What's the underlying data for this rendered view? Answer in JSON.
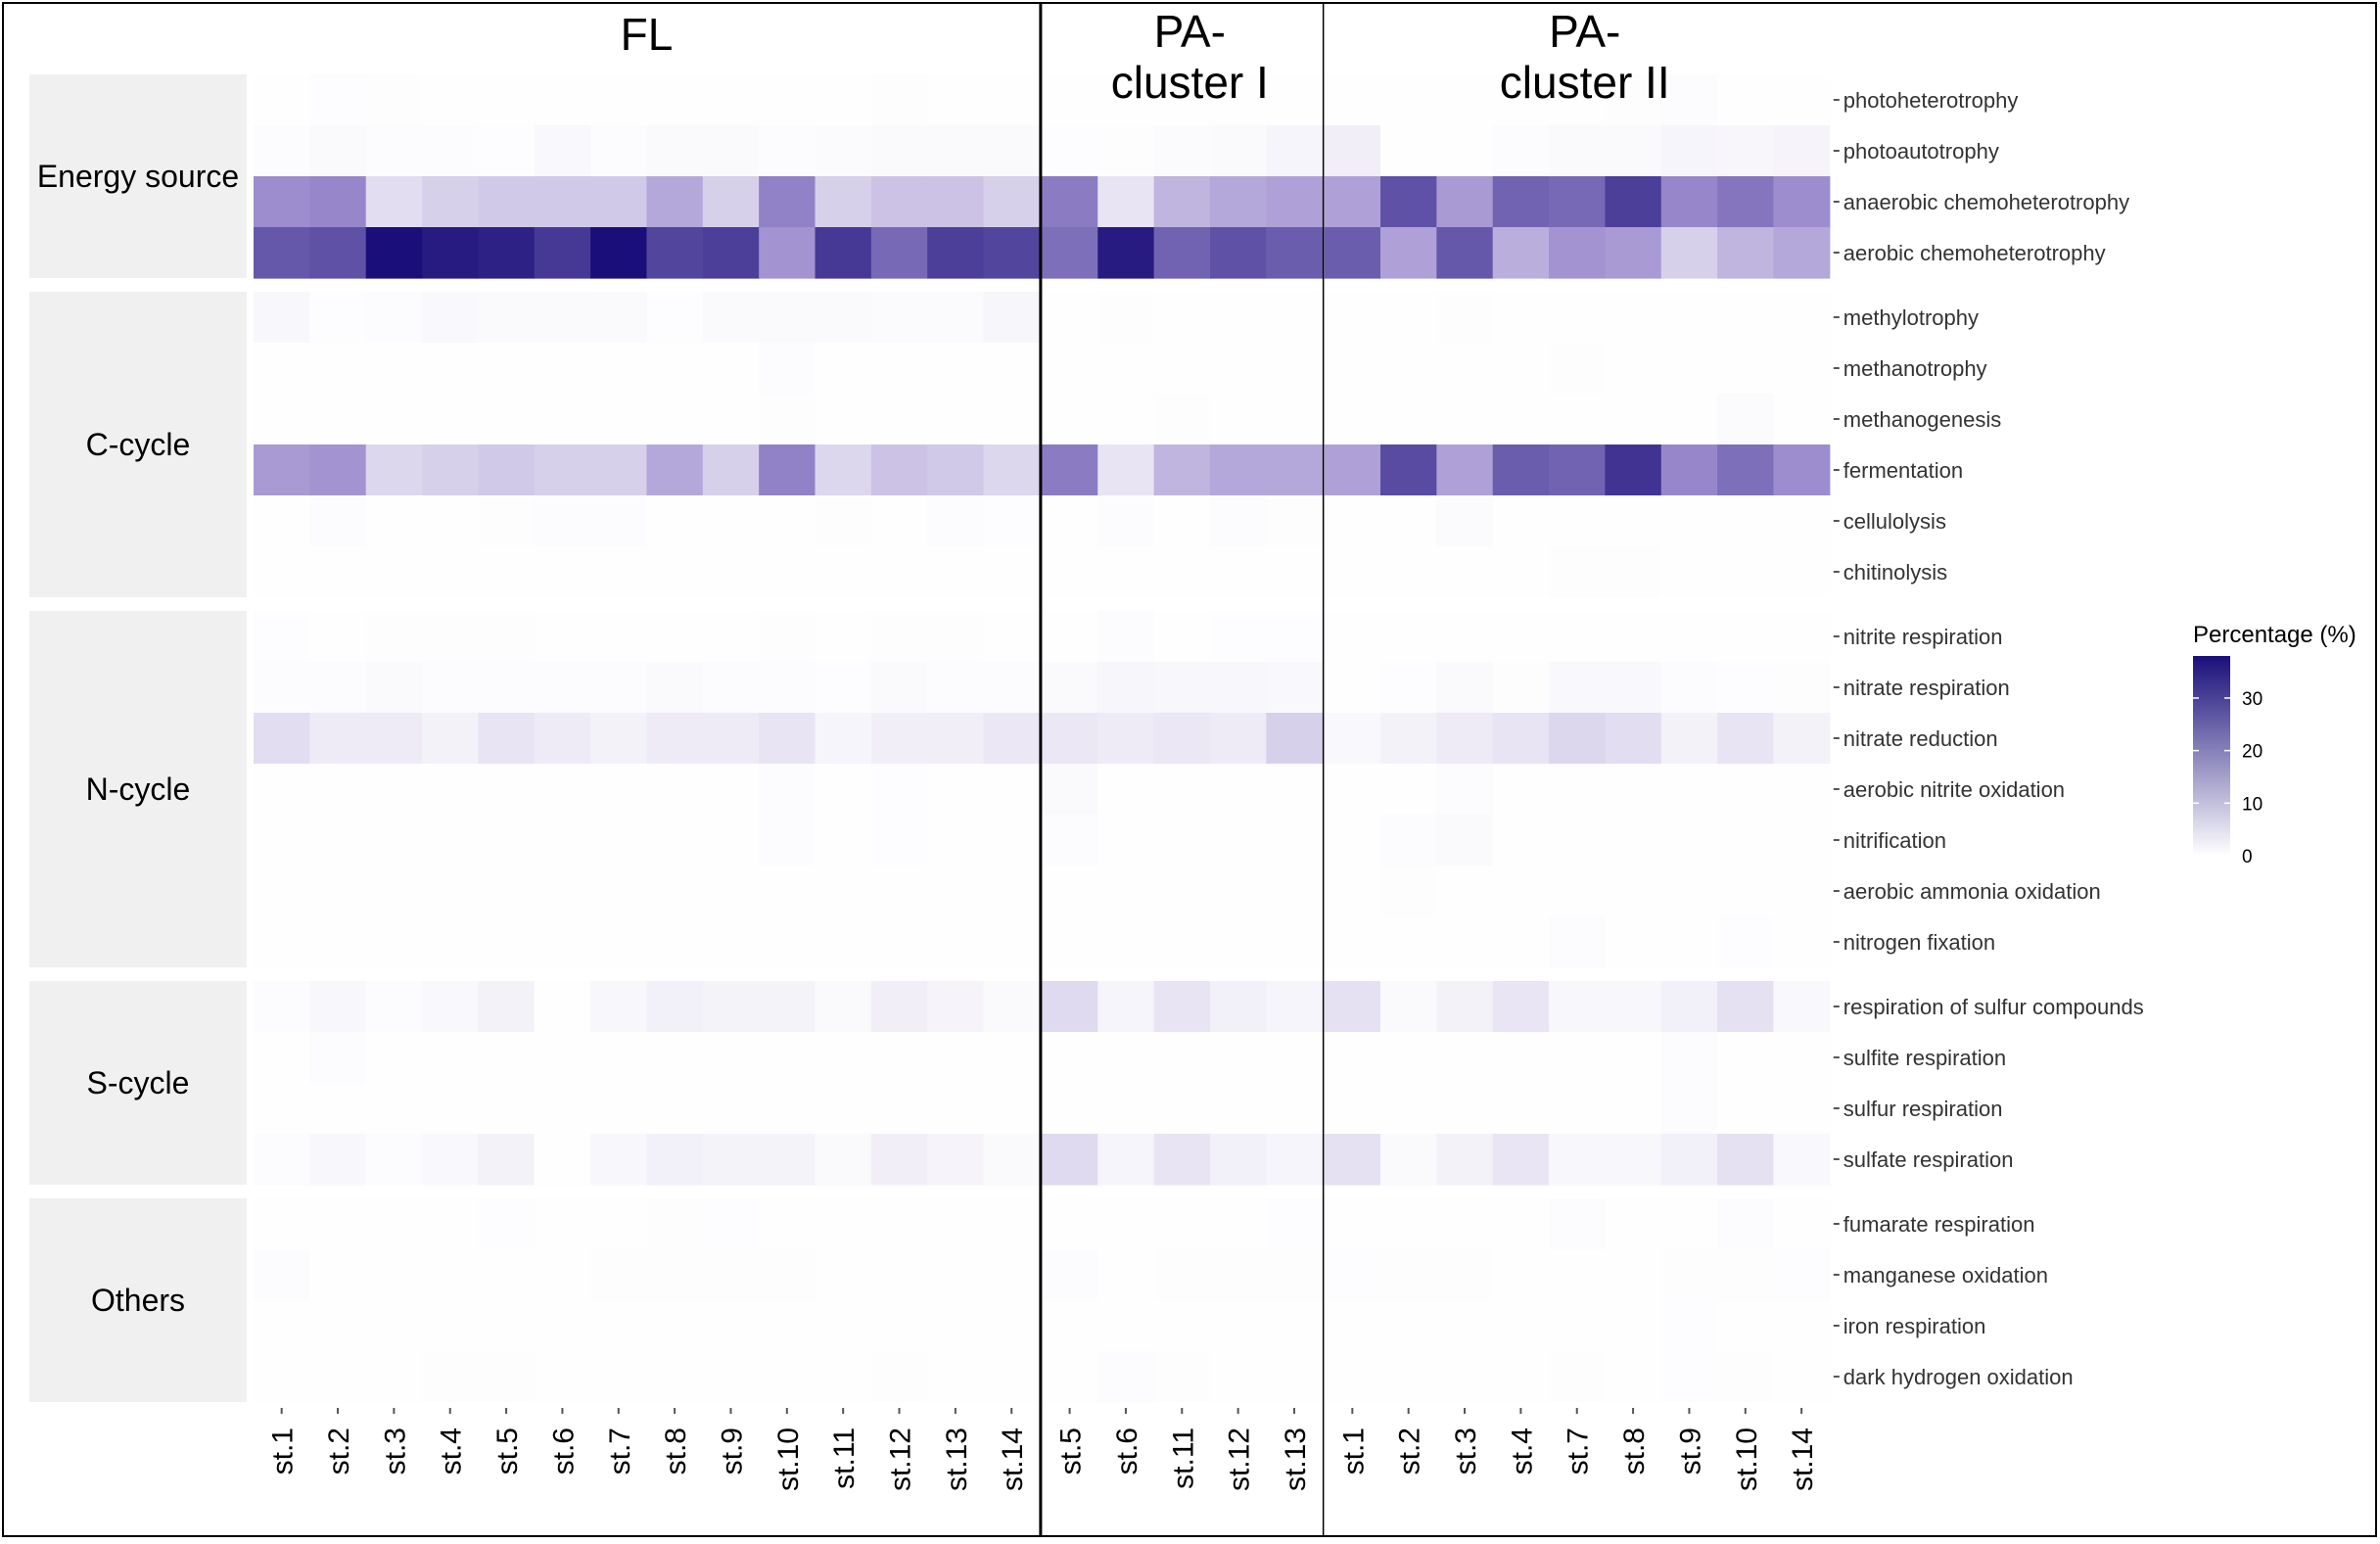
{
  "chart_data": {
    "type": "heatmap",
    "legend": {
      "title": "Percentage (%)",
      "ticks": [
        0,
        10,
        20,
        30
      ],
      "range": [
        0,
        38
      ],
      "color_low": "#ffffff",
      "color_high": "#1a0f7a",
      "placement": "right"
    },
    "sections": [
      {
        "name": "FL",
        "columns": [
          "st.1",
          "st.2",
          "st.3",
          "st.4",
          "st.5",
          "st.6",
          "st.7",
          "st.8",
          "st.9",
          "st.10",
          "st.11",
          "st.12",
          "st.13",
          "st.14"
        ]
      },
      {
        "name": "PA-\ncluster I",
        "columns": [
          "st.5",
          "st.6",
          "st.11",
          "st.12",
          "st.13"
        ]
      },
      {
        "name": "PA-\ncluster II",
        "columns": [
          "st.1",
          "st.2",
          "st.3",
          "st.4",
          "st.7",
          "st.8",
          "st.9",
          "st.10",
          "st.14"
        ]
      }
    ],
    "groups": [
      {
        "name": "Energy source",
        "rows": [
          "photoheterotrophy",
          "photoautotrophy",
          "anaerobic chemoheterotrophy",
          "aerobic chemoheterotrophy"
        ]
      },
      {
        "name": "C-cycle",
        "rows": [
          "methylotrophy",
          "methanotrophy",
          "methanogenesis",
          "fermentation",
          "cellulolysis",
          "chitinolysis"
        ]
      },
      {
        "name": "N-cycle",
        "rows": [
          "nitrite respiration",
          "nitrate respiration",
          "nitrate reduction",
          "aerobic nitrite oxidation",
          "nitrification",
          "aerobic ammonia oxidation",
          "nitrogen fixation"
        ]
      },
      {
        "name": "S-cycle",
        "rows": [
          "respiration of sulfur compounds",
          "sulfite respiration",
          "sulfur respiration",
          "sulfate respiration"
        ]
      },
      {
        "name": "Others",
        "rows": [
          "fumarate respiration",
          "manganese oxidation",
          "iron respiration",
          "dark hydrogen oxidation"
        ]
      }
    ],
    "values": [
      [
        [
          0.1,
          0.4,
          0.3,
          0.2,
          0.1,
          0.1,
          0.2,
          0.2,
          0.1,
          0.1,
          0.2,
          0.3,
          0.1,
          0.1
        ],
        [
          0.1,
          0.2,
          0.1,
          0.1,
          0.1
        ],
        [
          0.1,
          0.1,
          0.1,
          0.1,
          0.1,
          0.3,
          0.6,
          0.1,
          0.1
        ]
      ],
      [
        [
          0.6,
          0.8,
          0.5,
          0.5,
          0.4,
          1.0,
          0.6,
          0.9,
          0.8,
          0.5,
          0.7,
          0.8,
          0.8,
          0.8
        ],
        [
          0.4,
          0.3,
          0.7,
          0.9,
          1.5
        ],
        [
          2.5,
          0.2,
          0.2,
          0.6,
          0.8,
          0.9,
          1.5,
          1.3,
          1.6
        ]
      ],
      [
        [
          17,
          18,
          5,
          7,
          8,
          8,
          8,
          13,
          7,
          19,
          7,
          9,
          9,
          7
        ],
        [
          20,
          4,
          11,
          13,
          14
        ],
        [
          14,
          27,
          15,
          24,
          23,
          30,
          18,
          21,
          17
        ]
      ],
      [
        [
          26,
          27,
          38,
          36,
          35,
          31,
          38,
          29,
          30,
          16,
          31,
          23,
          30,
          29
        ],
        [
          22,
          36,
          24,
          27,
          25
        ],
        [
          25,
          14,
          26,
          12,
          16,
          15,
          7,
          11,
          13
        ]
      ],
      [
        [
          1.2,
          0.4,
          0.6,
          1.0,
          0.8,
          0.8,
          0.9,
          0.4,
          0.9,
          0.9,
          0.8,
          0.7,
          0.7,
          1.4
        ],
        [
          0.1,
          0.3,
          0.1,
          0.1,
          0.1
        ],
        [
          0.1,
          0.1,
          0.3,
          0.1,
          0.1,
          0.1,
          0.1,
          0.1,
          0.1
        ]
      ],
      [
        [
          0.1,
          0.1,
          0.1,
          0.1,
          0.1,
          0.1,
          0.1,
          0.1,
          0.1,
          0.5,
          0.1,
          0.1,
          0.1,
          0.1
        ],
        [
          0.1,
          0.1,
          0.1,
          0.1,
          0.1
        ],
        [
          0.1,
          0.1,
          0.1,
          0.1,
          0.3,
          0.1,
          0.1,
          0.1,
          0.1
        ]
      ],
      [
        [
          0.1,
          0.1,
          0.1,
          0.1,
          0.1,
          0.1,
          0.1,
          0.1,
          0.1,
          0.3,
          0.1,
          0.1,
          0.1,
          0.1
        ],
        [
          0.1,
          0.1,
          0.3,
          0.1,
          0.1
        ],
        [
          0.1,
          0.1,
          0.1,
          0.1,
          0.1,
          0.1,
          0.1,
          0.7,
          0.1
        ]
      ],
      [
        [
          15,
          16,
          6,
          7,
          8,
          7,
          7,
          13,
          7,
          19,
          6,
          9,
          8,
          6
        ],
        [
          20,
          4,
          11,
          13,
          13
        ],
        [
          14,
          28,
          14,
          25,
          24,
          32,
          18,
          22,
          17
        ]
      ],
      [
        [
          0.1,
          0.5,
          0.2,
          0.1,
          0.3,
          0.6,
          0.6,
          0.1,
          0.1,
          0.1,
          0.3,
          0.1,
          0.5,
          0.4
        ],
        [
          0.1,
          0.5,
          0.1,
          0.6,
          0.3
        ],
        [
          0.1,
          0.1,
          0.7,
          0.1,
          0.1,
          0.1,
          0.1,
          0.1,
          0.1
        ]
      ],
      [
        [
          0.1,
          0.1,
          0.1,
          0.1,
          0.1,
          0.1,
          0.1,
          0.1,
          0.1,
          0.1,
          0.1,
          0.1,
          0.1,
          0.1
        ],
        [
          0.1,
          0.1,
          0.1,
          0.1,
          0.1
        ],
        [
          0.1,
          0.1,
          0.1,
          0.1,
          0.3,
          0.3,
          0.1,
          0.1,
          0.1
        ]
      ],
      [
        [
          0.4,
          0.1,
          0.3,
          0.3,
          0.3,
          0.1,
          0.1,
          0.2,
          0.1,
          0.3,
          0.1,
          0.3,
          0.3,
          0.1
        ],
        [
          0.1,
          0.5,
          0.1,
          0.4,
          0.4
        ],
        [
          0.1,
          0.1,
          0.1,
          0.1,
          0.1,
          0.1,
          0.1,
          0.1,
          0.1
        ]
      ],
      [
        [
          0.5,
          0.5,
          0.8,
          0.6,
          0.6,
          0.6,
          0.6,
          0.9,
          0.5,
          0.5,
          0.4,
          0.9,
          0.5,
          0.5
        ],
        [
          0.9,
          1.4,
          1.2,
          1.2,
          1.1
        ],
        [
          0.2,
          0.4,
          0.9,
          0.3,
          1.0,
          1.1,
          0.6,
          0.4,
          0.3
        ]
      ],
      [
        [
          5,
          3,
          3,
          2,
          4,
          3,
          2,
          3,
          3,
          4,
          1.5,
          2.5,
          2.5,
          3.5
        ],
        [
          3.5,
          3,
          3.5,
          3,
          7
        ],
        [
          1,
          2,
          3,
          4,
          6,
          5,
          2,
          4,
          2
        ]
      ],
      [
        [
          0.1,
          0.1,
          0.1,
          0.1,
          0.1,
          0.1,
          0.1,
          0.1,
          0.1,
          0.5,
          0.1,
          0.4,
          0.1,
          0.1
        ],
        [
          0.8,
          0.1,
          0.1,
          0.1,
          0.1
        ],
        [
          0.1,
          0.1,
          0.6,
          0.1,
          0.1,
          0.1,
          0.1,
          0.1,
          0.1
        ]
      ],
      [
        [
          0.1,
          0.1,
          0.1,
          0.1,
          0.1,
          0.1,
          0.1,
          0.1,
          0.1,
          0.5,
          0.1,
          0.4,
          0.1,
          0.1
        ],
        [
          0.6,
          0.1,
          0.1,
          0.1,
          0.1
        ],
        [
          0.1,
          0.6,
          0.8,
          0.1,
          0.1,
          0.1,
          0.1,
          0.1,
          0.1
        ]
      ],
      [
        [
          0.1,
          0.1,
          0.1,
          0.1,
          0.1,
          0.1,
          0.1,
          0.1,
          0.1,
          0.1,
          0.1,
          0.1,
          0.1,
          0.1
        ],
        [
          0.1,
          0.1,
          0.1,
          0.1,
          0.1
        ],
        [
          0.1,
          0.3,
          0.1,
          0.1,
          0.1,
          0.1,
          0.1,
          0.1,
          0.1
        ]
      ],
      [
        [
          0.1,
          0.1,
          0.1,
          0.1,
          0.1,
          0.1,
          0.1,
          0.1,
          0.1,
          0.1,
          0.1,
          0.1,
          0.1,
          0.1
        ],
        [
          0.1,
          0.1,
          0.1,
          0.1,
          0.1
        ],
        [
          0.1,
          0.1,
          0.1,
          0.1,
          0.6,
          0.1,
          0.1,
          0.4,
          0.1
        ]
      ],
      [
        [
          0.6,
          1.2,
          0.5,
          1.0,
          2.0,
          0.1,
          1.2,
          2.3,
          1.8,
          1.8,
          0.9,
          2.5,
          1.6,
          0.8
        ],
        [
          5.5,
          1.5,
          4,
          2.2,
          1.5
        ],
        [
          4.5,
          0.8,
          2,
          3.8,
          1.2,
          1.2,
          2.2,
          4.5,
          1
        ]
      ],
      [
        [
          0.1,
          0.5,
          0.1,
          0.1,
          0.1,
          0.1,
          0.1,
          0.1,
          0.1,
          0.1,
          0.1,
          0.1,
          0.1,
          0.1
        ],
        [
          0.1,
          0.1,
          0.1,
          0.1,
          0.1
        ],
        [
          0.1,
          0.1,
          0.1,
          0.1,
          0.1,
          0.1,
          0.5,
          0.1,
          0.1
        ]
      ],
      [
        [
          0.1,
          0.1,
          0.1,
          0.1,
          0.1,
          0.1,
          0.1,
          0.1,
          0.1,
          0.1,
          0.1,
          0.1,
          0.1,
          0.1
        ],
        [
          0.1,
          0.1,
          0.1,
          0.1,
          0.1
        ],
        [
          0.1,
          0.1,
          0.1,
          0.1,
          0.1,
          0.1,
          0.5,
          0.1,
          0.1
        ]
      ],
      [
        [
          0.6,
          1.2,
          0.5,
          1.0,
          2.0,
          0.1,
          1.2,
          2.3,
          1.8,
          1.8,
          0.9,
          2.5,
          1.6,
          0.8
        ],
        [
          5.5,
          1.5,
          4,
          2.2,
          1.5
        ],
        [
          4.5,
          0.8,
          2,
          3.8,
          1.2,
          1.2,
          2.2,
          4.5,
          1
        ]
      ],
      [
        [
          0.1,
          0.1,
          0.1,
          0.1,
          0.4,
          0.1,
          0.1,
          0.3,
          0.4,
          0.1,
          0.1,
          0.1,
          0.1,
          0.1
        ],
        [
          0.1,
          0.1,
          0.1,
          0.1,
          0.4
        ],
        [
          0.1,
          0.1,
          0.1,
          0.1,
          0.5,
          0.1,
          0.1,
          0.5,
          0.1
        ]
      ],
      [
        [
          0.5,
          0.1,
          0.1,
          0.1,
          0.1,
          0.1,
          0.3,
          0.3,
          0.3,
          0.3,
          0.1,
          0.1,
          0.1,
          0.1
        ],
        [
          0.6,
          0.1,
          0.3,
          0.3,
          0.3
        ],
        [
          0.4,
          0.3,
          0.3,
          0.1,
          0.1,
          0.1,
          0.3,
          0.3,
          0.4
        ]
      ],
      [
        [
          0.1,
          0.1,
          0.1,
          0.1,
          0.1,
          0.1,
          0.1,
          0.1,
          0.1,
          0.1,
          0.1,
          0.1,
          0.1,
          0.1
        ],
        [
          0.1,
          0.1,
          0.1,
          0.1,
          0.1
        ],
        [
          0.1,
          0.1,
          0.1,
          0.1,
          0.1,
          0.1,
          0.4,
          0.1,
          0.1
        ]
      ],
      [
        [
          0.1,
          0.1,
          0.1,
          0.3,
          0.3,
          0.1,
          0.1,
          0.1,
          0.1,
          0.1,
          0.1,
          0.3,
          0.1,
          0.1
        ],
        [
          0.1,
          0.5,
          0.3,
          0.1,
          0.1
        ],
        [
          0.1,
          0.1,
          0.1,
          0.1,
          0.3,
          0.1,
          0.4,
          0.3,
          0.1
        ]
      ]
    ]
  }
}
